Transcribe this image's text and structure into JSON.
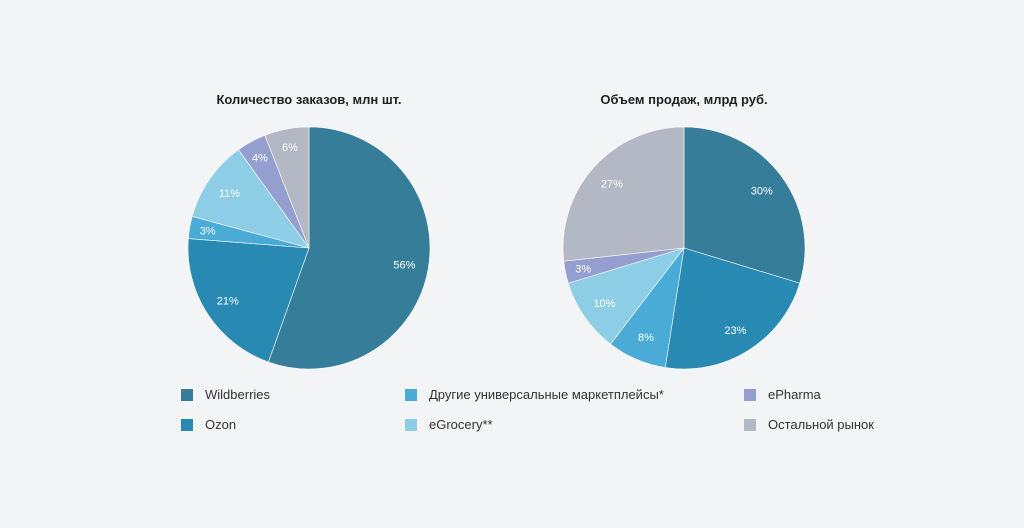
{
  "chart_data": [
    {
      "type": "pie",
      "title": "Количество заказов, млн шт.",
      "categories": [
        "Wildberries",
        "Ozon",
        "Другие универсальные маркетплейсы*",
        "eGrocery**",
        "ePharma",
        "Остальной рынок"
      ],
      "values": [
        56,
        21,
        3,
        11,
        4,
        6
      ],
      "labels": [
        "56%",
        "21%",
        "3%",
        "11%",
        "4%",
        "6%"
      ]
    },
    {
      "type": "pie",
      "title": "Объем продаж, млрд руб.",
      "categories": [
        "Wildberries",
        "Ozon",
        "Другие универсальные маркетплейсы*",
        "eGrocery**",
        "ePharma",
        "Остальной рынок"
      ],
      "values": [
        30,
        23,
        8,
        10,
        3,
        27
      ],
      "labels": [
        "30%",
        "23%",
        "8%",
        "10%",
        "3%",
        "27%"
      ]
    }
  ],
  "legend": [
    {
      "label": "Wildberries",
      "color": "#357d99"
    },
    {
      "label": "Ozon",
      "color": "#2889b3"
    },
    {
      "label": "Другие универсальные маркетплейсы*",
      "color": "#4aabd6"
    },
    {
      "label": "eGrocery**",
      "color": "#8ecde6"
    },
    {
      "label": "ePharma",
      "color": "#959fcf"
    },
    {
      "label": "Остальной рынок",
      "color": "#b3b8c4"
    }
  ]
}
